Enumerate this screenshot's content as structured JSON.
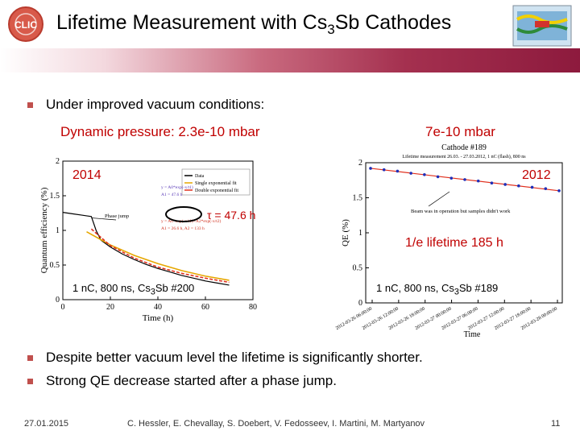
{
  "header": {
    "title_prefix": "Lifetime Measurement with Cs",
    "title_sub": "3",
    "title_suffix": "Sb Cathodes",
    "clic_logo_text": "CLIC"
  },
  "bullets": {
    "intro": "Under improved vacuum conditions:",
    "conclusion_1": "Despite better vacuum level the lifetime is significantly shorter.",
    "conclusion_2": "Strong QE decrease started after a phase jump."
  },
  "pressures": {
    "left": "Dynamic pressure: 2.3e-10 mbar",
    "right": "7e-10 mbar"
  },
  "annotations": {
    "left_year": "2014",
    "tau": "τ = 47.6 h",
    "left_run_prefix": "1 nC, 800 ns, Cs",
    "left_run_sub": "3",
    "left_run_suffix": "Sb #200",
    "right_year": "2012",
    "right_lifetime": "1/e lifetime 185 h",
    "right_run_prefix": "1 nC, 800 ns, Cs",
    "right_run_sub": "3",
    "right_run_suffix": "Sb #189"
  },
  "footer": {
    "date": "27.01.2015",
    "authors": "C. Hessler, E. Chevallay, S. Doebert, V. Fedosseev, I. Martini, M. Martyanov",
    "page": "11"
  },
  "chart_data": [
    {
      "type": "line",
      "title": "",
      "xlabel": "Time (h)",
      "ylabel": "Quantum efficiency (%)",
      "xlim": [
        0,
        80
      ],
      "ylim": [
        0,
        2
      ],
      "x_ticks": [
        "0",
        "20",
        "40",
        "60",
        "80"
      ],
      "y_ticks": [
        "0",
        "0.5",
        "1",
        "1.5",
        "2"
      ],
      "legend": [
        "Data",
        "Single exponential fit",
        "Double exponential fit"
      ],
      "fit_text": [
        "y = A0*exp(-x/t1)",
        "A1 = 47.6 h",
        "y = A0*exp(-x/t1)+A2*exp(-x/t2)",
        "A1 = 26.6 h, A2 = 133 h"
      ],
      "callout": "Phase jump",
      "series": [
        {
          "name": "Data",
          "x": [
            0,
            4,
            8,
            10,
            12,
            14,
            16,
            20,
            25,
            30,
            35,
            40,
            45,
            50,
            55,
            60,
            65,
            70
          ],
          "values": [
            1.26,
            1.24,
            1.22,
            1.21,
            1.2,
            1.0,
            0.86,
            0.76,
            0.66,
            0.58,
            0.51,
            0.45,
            0.4,
            0.35,
            0.31,
            0.27,
            0.24,
            0.21
          ]
        },
        {
          "name": "Single exponential fit",
          "x": [
            10,
            20,
            30,
            40,
            50,
            60,
            70
          ],
          "values": [
            0.98,
            0.79,
            0.64,
            0.52,
            0.42,
            0.34,
            0.28
          ]
        },
        {
          "name": "Double exponential fit",
          "x": [
            12,
            20,
            30,
            40,
            50,
            60,
            70
          ],
          "values": [
            1.02,
            0.78,
            0.6,
            0.47,
            0.38,
            0.31,
            0.25
          ]
        }
      ],
      "colors": {
        "data": "#000000",
        "single": "#e6a700",
        "double": "#e0301e"
      }
    },
    {
      "type": "scatter",
      "title": "Cathode #189",
      "subtitle": "Lifetime measurement 26.03. - 27.03.2012, 1 nC (flash), 800 ns",
      "xlabel": "Time",
      "ylabel": "QE (%)",
      "ylim": [
        0,
        2
      ],
      "y_ticks": [
        "0",
        "0.5",
        "1",
        "1.5",
        "2"
      ],
      "x_ticks": [
        "2012-03-26 06:00:00",
        "2012-03-26 12:00:00",
        "2012-03-26 18:00:00",
        "2012-03-27 00:00:00",
        "2012-03-27 06:00:00",
        "2012-03-27 12:00:00",
        "2012-03-27 18:00:00",
        "2012-03-28 00:00:00"
      ],
      "callout": "Beam was in operation but samples didn't work",
      "series": [
        {
          "name": "QE",
          "x": [
            0,
            0.5,
            1,
            1.5,
            2,
            2.5,
            3,
            3.5,
            4,
            4.5,
            5,
            5.5,
            6,
            6.5,
            7
          ],
          "values": [
            1.92,
            1.9,
            1.88,
            1.85,
            1.83,
            1.8,
            1.78,
            1.76,
            1.74,
            1.71,
            1.69,
            1.67,
            1.65,
            1.63,
            1.6
          ]
        }
      ],
      "colors": {
        "data": "#1f2fb8",
        "fit": "#e0301e"
      }
    }
  ]
}
